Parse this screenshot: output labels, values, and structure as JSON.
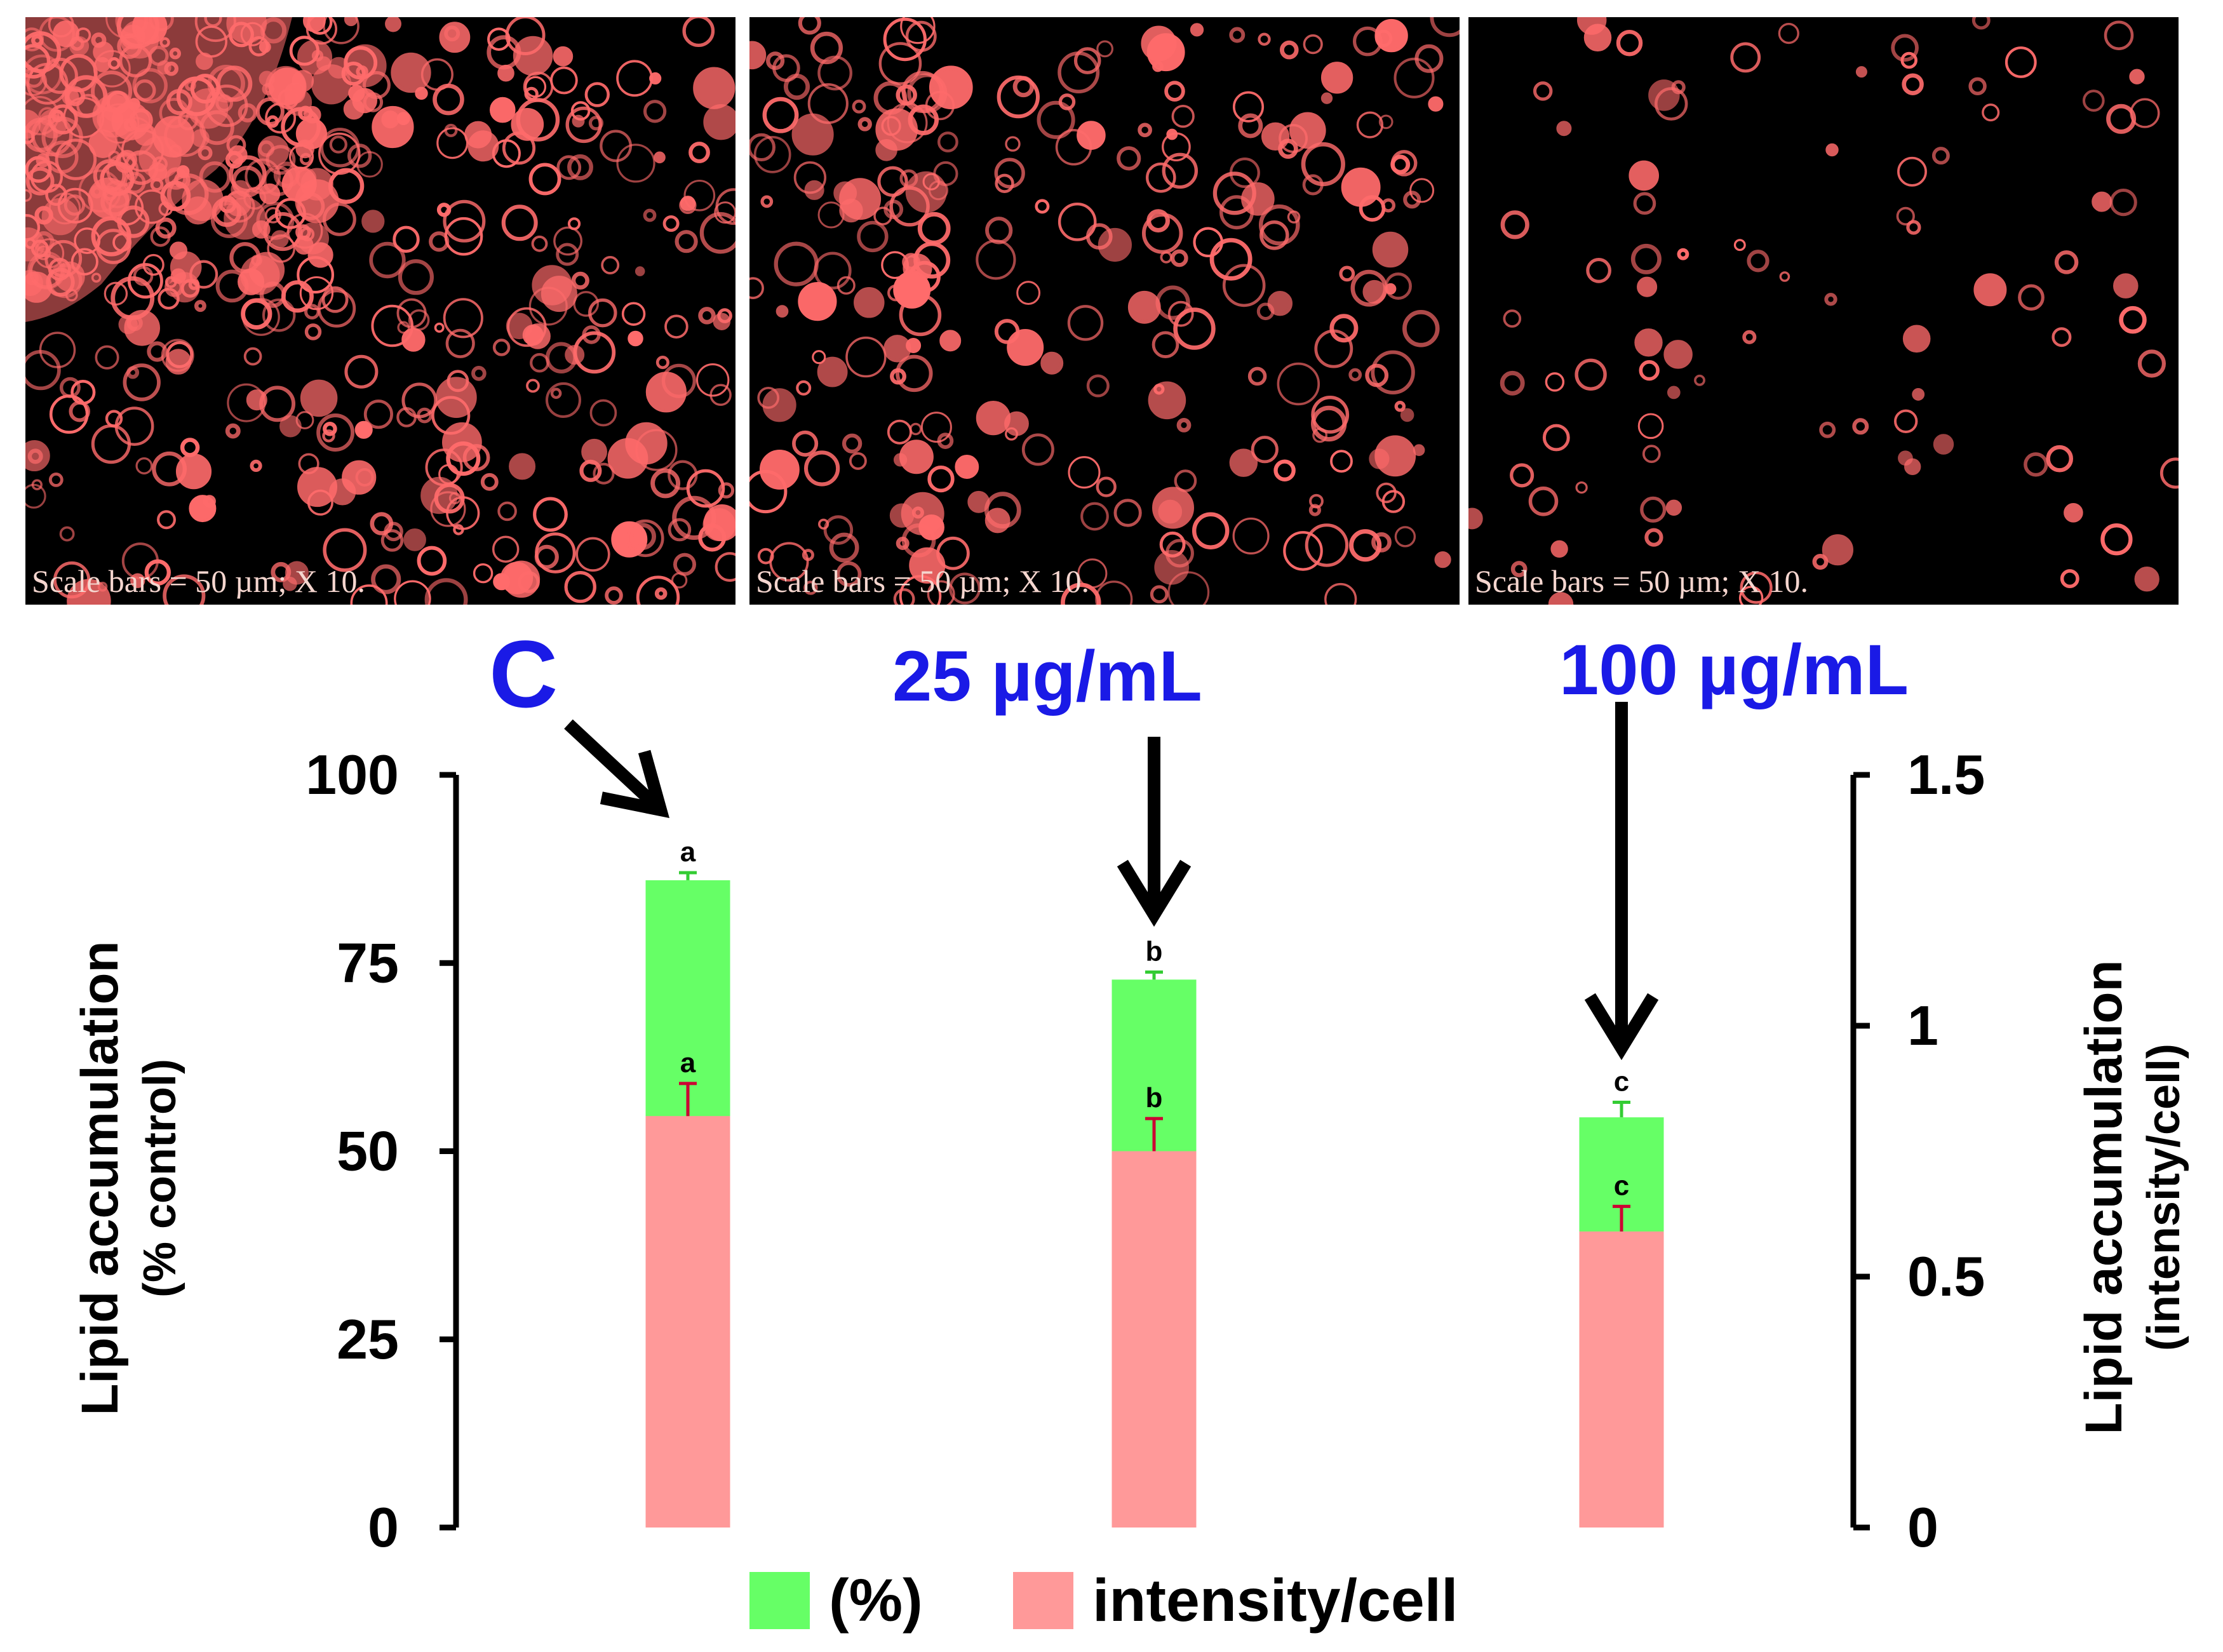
{
  "micrographs": [
    {
      "condition": "C",
      "scale_text": "Scale bars = 50 µm; X 10.",
      "density": "high"
    },
    {
      "condition": "25 µg/mL",
      "scale_text": "Scale bars = 50 µm; X 10.",
      "density": "medium"
    },
    {
      "condition": "100 µg/mL",
      "scale_text": "Scale bars = 50 µm; X 10.",
      "density": "low"
    }
  ],
  "colors": {
    "percent": "#66ff66",
    "intensity": "#ff9999",
    "condition_label": "#1a1ae6",
    "error_bar_green": "#33cc33",
    "error_bar_red": "#cc0033",
    "micro_circle": "#ff6b6b"
  },
  "chart_data": {
    "type": "bar",
    "stacked_overlay": true,
    "categories": [
      "C",
      "25 µg/mL",
      "100 µg/mL"
    ],
    "series": [
      {
        "name": "(%)",
        "axis": "left",
        "values": [
          86,
          72.8,
          54.5
        ],
        "errors": [
          1.0,
          1.0,
          2.0
        ],
        "significance": [
          "a",
          "b",
          "c"
        ]
      },
      {
        "name": "intensity/cell",
        "axis": "right",
        "values": [
          0.82,
          0.75,
          0.59
        ],
        "errors": [
          0.065,
          0.065,
          0.05
        ],
        "significance": [
          "a",
          "b",
          "c"
        ]
      }
    ],
    "left_axis": {
      "label_line1": "Lipid accumulation",
      "label_line2": "(% control)",
      "ylim": [
        0,
        100
      ],
      "ticks": [
        "0",
        "25",
        "50",
        "75",
        "100"
      ]
    },
    "right_axis": {
      "label_line1": "Lipid accumulation",
      "label_line2": "(intensity/cell)",
      "ylim": [
        0,
        1.5
      ],
      "ticks": [
        "0",
        "0.5",
        "1",
        "1.5"
      ]
    },
    "legend": {
      "items": [
        "(%)",
        "intensity/cell"
      ],
      "position": "bottom-center"
    }
  }
}
